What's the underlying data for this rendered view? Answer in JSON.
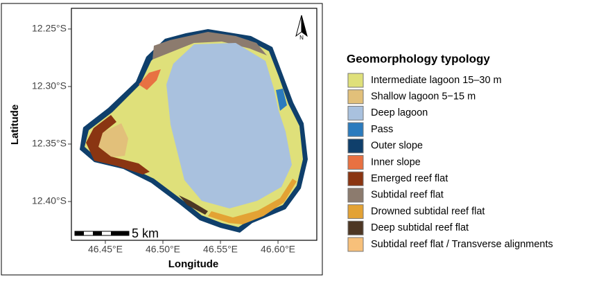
{
  "map": {
    "xlabel": "Longitude",
    "ylabel": "Latitude",
    "xlim": [
      46.4205,
      46.6337
    ],
    "ylim": [
      -12.4337,
      -12.232
    ],
    "xticks": [
      {
        "value": 46.45,
        "label": "46.45°E"
      },
      {
        "value": 46.5,
        "label": "46.50°E"
      },
      {
        "value": 46.55,
        "label": "46.55°E"
      },
      {
        "value": 46.6,
        "label": "46.60°E"
      }
    ],
    "yticks": [
      {
        "value": -12.25,
        "label": "12.25°S"
      },
      {
        "value": -12.3,
        "label": "12.30°S"
      },
      {
        "value": -12.35,
        "label": "12.35°S"
      },
      {
        "value": -12.4,
        "label": "12.40°S"
      }
    ],
    "scale_bar": "5 km",
    "north": "N"
  },
  "legend": {
    "title": "Geomorphology typology",
    "items": [
      {
        "label": "Intermediate lagoon 15–30 m",
        "color": "#dfe07a"
      },
      {
        "label": "Shallow lagoon 5−15 m",
        "color": "#e2c07a"
      },
      {
        "label": "Deep lagoon",
        "color": "#a9c1de"
      },
      {
        "label": "Pass",
        "color": "#2b7bbe"
      },
      {
        "label": "Outer slope",
        "color": "#0f3f6b"
      },
      {
        "label": "Inner slope",
        "color": "#e87142"
      },
      {
        "label": "Emerged reef flat",
        "color": "#8a3512"
      },
      {
        "label": "Subtidal reef flat",
        "color": "#8c7b6e"
      },
      {
        "label": "Drowned subtidal reef flat",
        "color": "#e3a234"
      },
      {
        "label": "Deep subtidal reef flat",
        "color": "#4d3724"
      },
      {
        "label": "Subtidal reef flat / Transverse alignments",
        "color": "#f7c07a"
      }
    ]
  }
}
